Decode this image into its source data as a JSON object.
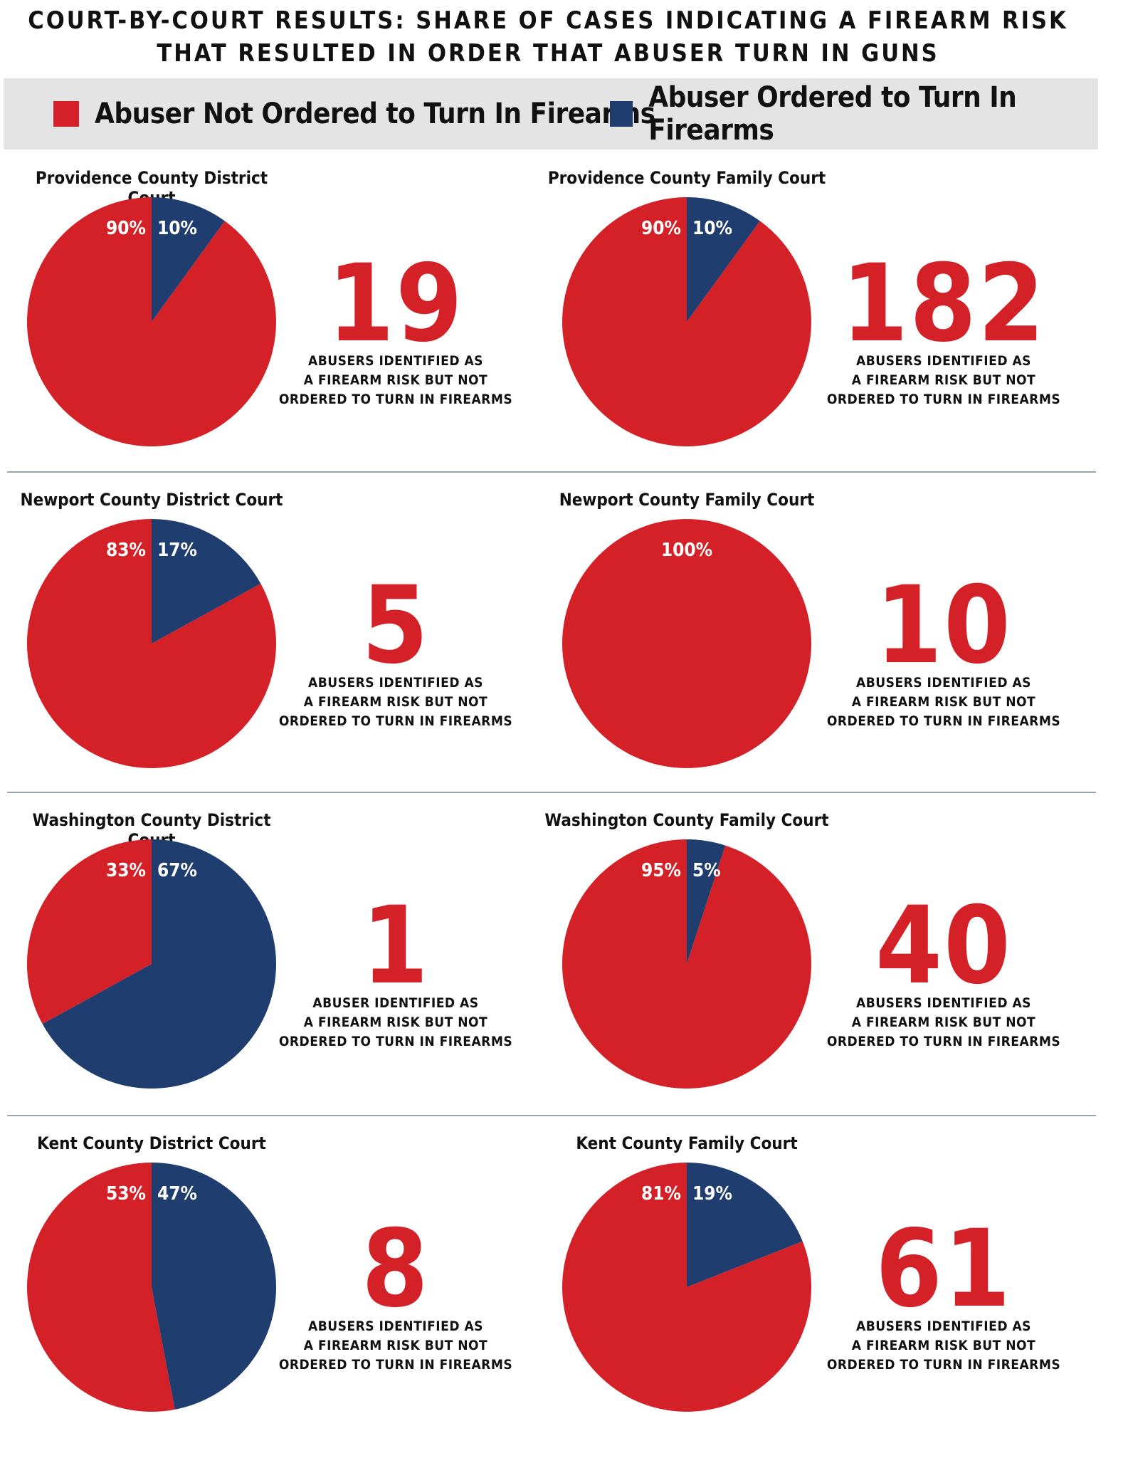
{
  "title_lines": [
    "COURT-BY-COURT RESULTS: SHARE OF CASES INDICATING A FIREARM RISK",
    "THAT RESULTED IN ORDER THAT ABUSER TURN IN GUNS"
  ],
  "legend": [
    {
      "label": "Abuser Not Ordered to Turn In Firearms",
      "color": "#d42027"
    },
    {
      "label": "Abuser Ordered to Turn In Firearms",
      "color": "#1f3d6e"
    }
  ],
  "chart_data": [
    {
      "type": "pie",
      "title": "Providence County District Court",
      "slices": [
        {
          "label": "Abuser Not Ordered to Turn In Firearms",
          "value": 90,
          "text": "90%"
        },
        {
          "label": "Abuser Ordered to Turn In Firearms",
          "value": 10,
          "text": "10%"
        }
      ],
      "count": "19",
      "caption": [
        "ABUSERS IDENTIFIED AS",
        "A FIREARM RISK BUT NOT",
        "ORDERED TO TURN IN FIREARMS"
      ]
    },
    {
      "type": "pie",
      "title": "Providence County Family Court",
      "slices": [
        {
          "label": "Abuser Not Ordered to Turn In Firearms",
          "value": 90,
          "text": "90%"
        },
        {
          "label": "Abuser Ordered to Turn In Firearms",
          "value": 10,
          "text": "10%"
        }
      ],
      "count": "182",
      "caption": [
        "ABUSERS IDENTIFIED AS",
        "A FIREARM RISK BUT NOT",
        "ORDERED TO TURN IN FIREARMS"
      ]
    },
    {
      "type": "pie",
      "title": "Newport County District Court",
      "slices": [
        {
          "label": "Abuser Not Ordered to Turn In Firearms",
          "value": 83,
          "text": "83%"
        },
        {
          "label": "Abuser Ordered to Turn In Firearms",
          "value": 17,
          "text": "17%"
        }
      ],
      "count": "5",
      "caption": [
        "ABUSERS IDENTIFIED AS",
        "A FIREARM RISK BUT NOT",
        "ORDERED TO TURN IN FIREARMS"
      ]
    },
    {
      "type": "pie",
      "title": "Newport County Family Court",
      "slices": [
        {
          "label": "Abuser Not Ordered to Turn In Firearms",
          "value": 100,
          "text": "100%"
        },
        {
          "label": "Abuser Ordered to Turn In Firearms",
          "value": 0,
          "text": ""
        }
      ],
      "count": "10",
      "caption": [
        "ABUSERS IDENTIFIED AS",
        "A FIREARM RISK BUT NOT",
        "ORDERED TO TURN IN FIREARMS"
      ]
    },
    {
      "type": "pie",
      "title": "Washington County District Court",
      "slices": [
        {
          "label": "Abuser Not Ordered to Turn In Firearms",
          "value": 33,
          "text": "33%"
        },
        {
          "label": "Abuser Ordered to Turn In Firearms",
          "value": 67,
          "text": "67%"
        }
      ],
      "count": "1",
      "caption": [
        "ABUSER IDENTIFIED AS",
        "A FIREARM RISK BUT NOT",
        "ORDERED TO TURN IN FIREARMS"
      ]
    },
    {
      "type": "pie",
      "title": "Washington County Family Court",
      "slices": [
        {
          "label": "Abuser Not Ordered to Turn In Firearms",
          "value": 95,
          "text": "95%"
        },
        {
          "label": "Abuser Ordered to Turn In Firearms",
          "value": 5,
          "text": "5%"
        }
      ],
      "count": "40",
      "caption": [
        "ABUSERS IDENTIFIED AS",
        "A FIREARM RISK BUT NOT",
        "ORDERED TO TURN IN FIREARMS"
      ]
    },
    {
      "type": "pie",
      "title": "Kent County District Court",
      "slices": [
        {
          "label": "Abuser Not Ordered to Turn In Firearms",
          "value": 53,
          "text": "53%"
        },
        {
          "label": "Abuser Ordered to Turn In Firearms",
          "value": 47,
          "text": "47%"
        }
      ],
      "count": "8",
      "caption": [
        "ABUSERS IDENTIFIED AS",
        "A FIREARM RISK BUT NOT",
        "ORDERED TO TURN IN FIREARMS"
      ]
    },
    {
      "type": "pie",
      "title": "Kent County Family Court",
      "slices": [
        {
          "label": "Abuser Not Ordered to Turn In Firearms",
          "value": 81,
          "text": "81%"
        },
        {
          "label": "Abuser Ordered to Turn In Firearms",
          "value": 19,
          "text": "19%"
        }
      ],
      "count": "61",
      "caption": [
        "ABUSERS IDENTIFIED AS",
        "A FIREARM RISK BUT NOT",
        "ORDERED TO TURN IN FIREARMS"
      ]
    }
  ]
}
